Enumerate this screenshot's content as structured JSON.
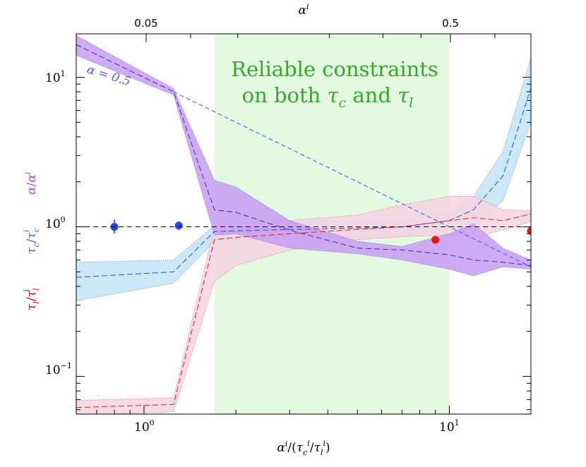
{
  "chart_data": {
    "type": "line",
    "x_axis": {
      "label": "α^i/(τ_c^i/τ_l^i)",
      "scale": "log",
      "lim": [
        0.6,
        18.5
      ],
      "major_ticks": [
        {
          "value": 1,
          "label": "10^0"
        },
        {
          "value": 10,
          "label": "10^1"
        }
      ]
    },
    "top_axis": {
      "label": "α^i",
      "scale": "log",
      "ticks": [
        {
          "value": 0.05,
          "label": "0.05"
        },
        {
          "value": 0.5,
          "label": "0.5"
        }
      ]
    },
    "y_axis": {
      "scale": "log",
      "lim": [
        0.056,
        19.5
      ],
      "major_ticks": [
        {
          "value": 0.1,
          "label": "10^-1"
        },
        {
          "value": 1,
          "label": "10^0"
        },
        {
          "value": 10,
          "label": "10^1"
        }
      ],
      "labels": [
        {
          "text": "τ_l/τ_l^i",
          "color": "#e8001c"
        },
        {
          "text": "τ_c/τ_c^i",
          "color": "#3a66e8"
        },
        {
          "text": "α/α^i",
          "color": "#a64ae8"
        }
      ]
    },
    "highlight_region": {
      "x_range": [
        1.7,
        10.0
      ],
      "color": "#e3f9e0"
    },
    "annotations": [
      {
        "text": "Reliable constraints on both τ_c and τ_l",
        "color": "#33aa2a"
      },
      {
        "text": "α = 0.5",
        "color": "#6655ee"
      }
    ],
    "reference_line": {
      "y": 1.0,
      "style": "dashed",
      "color": "#000000"
    },
    "series": [
      {
        "name": "τ_c/τ_c^i",
        "color": "#3344cc",
        "fill": "#c2e4f7",
        "x": [
          0.6,
          1.25,
          1.7,
          2.0,
          3.0,
          5.0,
          7.0,
          10.0,
          12.0,
          15.0,
          18.5
        ],
        "median": [
          0.46,
          0.5,
          0.93,
          0.94,
          0.96,
          0.98,
          1.0,
          1.1,
          1.3,
          2.2,
          8.5
        ],
        "low": [
          0.32,
          0.42,
          0.8,
          0.82,
          0.84,
          0.85,
          0.87,
          0.95,
          1.0,
          1.5,
          5.0
        ],
        "high": [
          0.58,
          0.6,
          1.02,
          1.05,
          1.08,
          1.1,
          1.12,
          1.25,
          1.6,
          3.2,
          13.5
        ]
      },
      {
        "name": "τ_l/τ_l^i",
        "color": "#dd2222",
        "fill": "#f6d3e1",
        "x": [
          0.6,
          1.25,
          1.7,
          2.0,
          3.0,
          5.0,
          7.0,
          10.0,
          12.0,
          15.0,
          18.5
        ],
        "median": [
          0.062,
          0.065,
          0.82,
          0.85,
          0.9,
          0.96,
          1.0,
          1.1,
          1.15,
          1.1,
          1.22
        ],
        "low": [
          0.055,
          0.058,
          0.43,
          0.55,
          0.7,
          0.82,
          0.86,
          0.88,
          0.85,
          0.95,
          1.08
        ],
        "high": [
          0.069,
          0.072,
          1.0,
          1.05,
          1.1,
          1.2,
          1.4,
          1.6,
          1.6,
          1.3,
          1.28
        ]
      },
      {
        "name": "α/α^i",
        "color": "#3333aa",
        "fill": "#c79cf5",
        "x": [
          0.6,
          1.25,
          1.7,
          2.0,
          3.0,
          5.0,
          7.0,
          10.0,
          12.0,
          15.0,
          18.5
        ],
        "median": [
          16.5,
          8.0,
          1.3,
          1.25,
          0.95,
          0.72,
          0.7,
          0.65,
          0.6,
          0.58,
          0.55
        ],
        "low": [
          14.0,
          7.6,
          0.88,
          0.9,
          0.72,
          0.66,
          0.6,
          0.52,
          0.47,
          0.54,
          0.52
        ],
        "high": [
          19.0,
          8.4,
          2.05,
          1.85,
          1.1,
          0.8,
          0.74,
          0.9,
          1.05,
          0.72,
          0.6
        ]
      }
    ],
    "alpha_line": {
      "label": "α = 0.5",
      "x": [
        1.25,
        18.5
      ],
      "y": [
        8.0,
        0.54
      ],
      "color": "#3355ee"
    },
    "points": [
      {
        "name": "τ_c/τ_c^i",
        "color": "#2244ee",
        "x": [
          0.8,
          1.3
        ],
        "y": [
          1.0,
          1.02
        ],
        "yerr_low": [
          0.9,
          0.95
        ],
        "yerr_high": [
          1.12,
          1.09
        ]
      },
      {
        "name": "τ_l/τ_l^i",
        "color": "#ee1111",
        "x": [
          9.0,
          18.5
        ],
        "y": [
          0.82,
          0.94
        ],
        "yerr_low": [
          0.8,
          0.92
        ],
        "yerr_high": [
          0.84,
          0.96
        ]
      }
    ]
  }
}
